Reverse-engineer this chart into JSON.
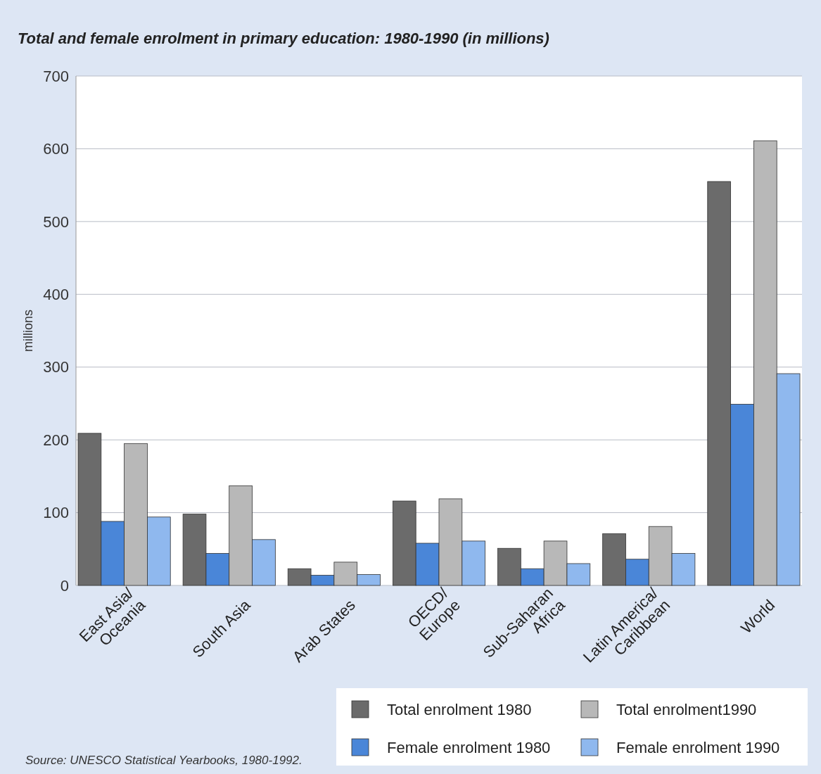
{
  "chart_data": {
    "type": "bar",
    "title": "Total and female enrolment in primary education: 1980-1990 (in millions)",
    "ylabel": "millions",
    "categories": [
      "East Asia/\nOceania",
      "South Asia",
      "Arab States",
      "OECD/\nEurope",
      "Sub-Saharan\nAfrica",
      "Latin America/\nCaribbean",
      "World"
    ],
    "series": [
      {
        "name": "Total enrolment 1980",
        "color": "#6b6b6b",
        "values": [
          209,
          98,
          23,
          116,
          51,
          71,
          555
        ]
      },
      {
        "name": "Female enrolment 1980",
        "color": "#4a86d8",
        "values": [
          88,
          44,
          14,
          58,
          23,
          36,
          249
        ]
      },
      {
        "name": "Total enrolment1990",
        "color": "#b8b8b8",
        "values": [
          195,
          137,
          32,
          119,
          61,
          81,
          611
        ]
      },
      {
        "name": "Female enrolment 1990",
        "color": "#8fb8ee",
        "values": [
          94,
          63,
          15,
          61,
          30,
          44,
          291
        ]
      }
    ],
    "ylim": [
      0,
      700
    ],
    "yticks": [
      0,
      100,
      200,
      300,
      400,
      500,
      600,
      700
    ],
    "grid": "y",
    "legend": "bottom right",
    "annotations": [
      "Source: UNESCO Statistical Yearbooks, 1980-1992."
    ]
  }
}
